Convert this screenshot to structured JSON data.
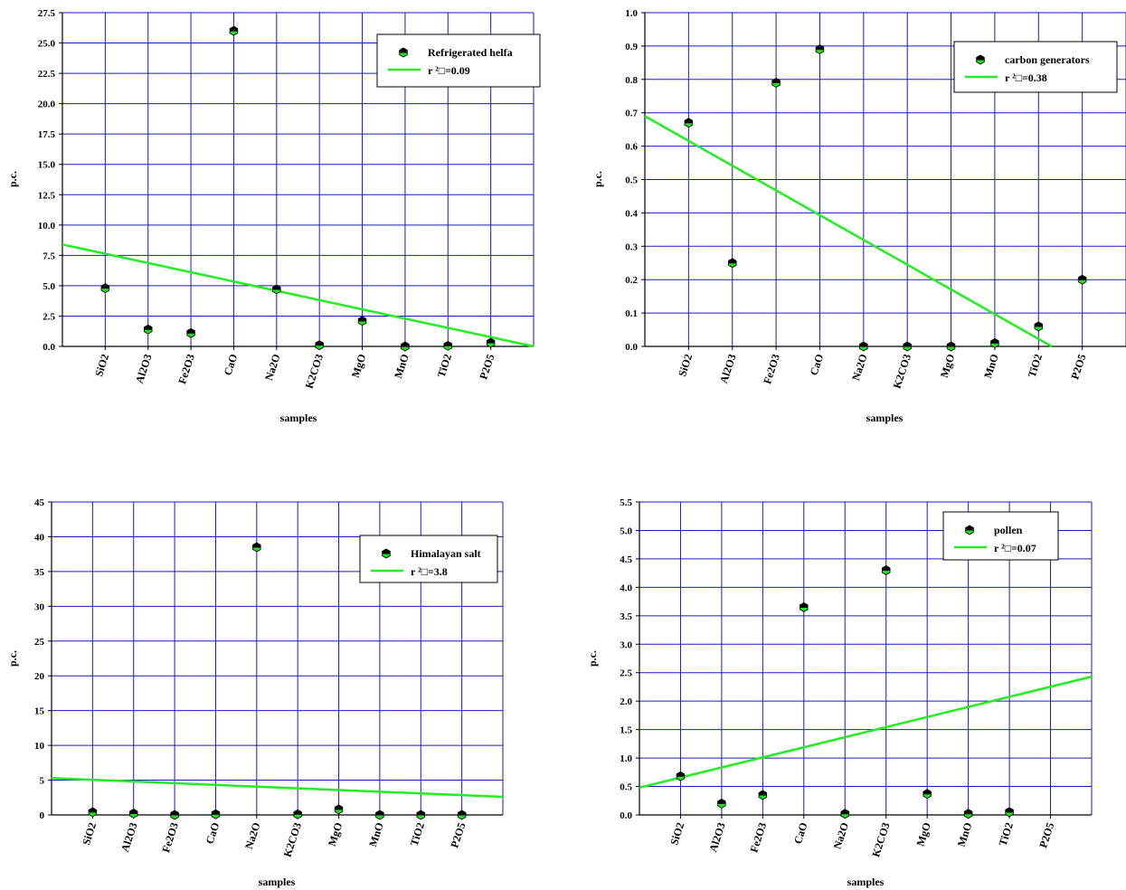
{
  "chart_data": [
    {
      "type": "scatter",
      "categories": [
        "SiO2",
        "Al2O3",
        "Fe2O3",
        "CaO",
        "Na2O",
        "K2CO3",
        "MgO",
        "MnO",
        "TiO2",
        "P2O5"
      ],
      "series": [
        {
          "name": "Refrigerated helfa",
          "values": [
            4.8,
            1.4,
            1.1,
            26.0,
            4.7,
            0.1,
            2.1,
            0.0,
            0.05,
            0.3
          ]
        }
      ],
      "fit_line": {
        "label": "r ²□=0.09",
        "start": [
          0.0,
          8.4
        ],
        "end": [
          11.0,
          0.0
        ]
      },
      "ylim": [
        0,
        27.5
      ],
      "yticks": [
        "0.0",
        "2.5",
        "5.0",
        "7.5",
        "10.0",
        "12.5",
        "15.0",
        "17.5",
        "20.0",
        "22.5",
        "25.0",
        "27.5"
      ],
      "xlabel": "samples",
      "ylabel": "p.c.",
      "legend_position": "top-right",
      "grid": true
    },
    {
      "type": "scatter",
      "categories": [
        "SiO2",
        "Al2O3",
        "Fe2O3",
        "CaO",
        "Na2O",
        "K2CO3",
        "MgO",
        "MnO",
        "TiO2",
        "P2O5"
      ],
      "series": [
        {
          "name": "carbon generators",
          "values": [
            0.67,
            0.25,
            0.79,
            0.89,
            0.0,
            0.0,
            0.0,
            0.01,
            0.06,
            0.2
          ]
        }
      ],
      "fit_line": {
        "label": "r ²□=0.38",
        "start": [
          0.0,
          0.69
        ],
        "end": [
          9.3,
          0.0
        ]
      },
      "ylim": [
        0,
        1.0
      ],
      "yticks": [
        "0.0",
        "0.1",
        "0.2",
        "0.3",
        "0.4",
        "0.5",
        "0.6",
        "0.7",
        "0.8",
        "0.9",
        "1.0"
      ],
      "xlabel": "samples",
      "ylabel": "p.c.",
      "legend_position": "top-right",
      "grid": true
    },
    {
      "type": "scatter",
      "categories": [
        "SiO2",
        "Al2O3",
        "Fe2O3",
        "CaO",
        "Na2O",
        "K2CO3",
        "MgO",
        "MnO",
        "TiO2",
        "P2O5"
      ],
      "series": [
        {
          "name": "Himalayan salt",
          "values": [
            0.4,
            0.2,
            0.0,
            0.1,
            38.5,
            0.1,
            0.8,
            0.0,
            0.0,
            0.0
          ]
        }
      ],
      "fit_line": {
        "label": "r ²□=3.8",
        "start": [
          0.0,
          5.3
        ],
        "end": [
          11.0,
          2.6
        ]
      },
      "ylim": [
        0,
        45
      ],
      "yticks": [
        "0",
        "5",
        "10",
        "15",
        "20",
        "25",
        "30",
        "35",
        "40",
        "45"
      ],
      "xlabel": "samples",
      "ylabel": "p.c.",
      "legend_position": "top-right",
      "grid": true
    },
    {
      "type": "scatter",
      "categories": [
        "SiO2",
        "Al2O3",
        "Fe2O3",
        "CaO",
        "Na2O",
        "K2CO3",
        "MgO",
        "MnO",
        "TiO2",
        "P2O5"
      ],
      "series": [
        {
          "name": "pollen",
          "values": [
            0.68,
            0.2,
            0.35,
            3.65,
            0.02,
            4.3,
            0.37,
            0.02,
            0.05,
            null
          ]
        }
      ],
      "fit_line": {
        "label": "r ²□=0.07",
        "start": [
          0.0,
          0.48
        ],
        "end": [
          11.0,
          2.43
        ]
      },
      "ylim": [
        0,
        5.5
      ],
      "yticks": [
        "0.0",
        "0.5",
        "1.0",
        "1.5",
        "2.0",
        "2.5",
        "3.0",
        "3.5",
        "4.0",
        "4.5",
        "5.0",
        "5.5"
      ],
      "xlabel": "samples",
      "ylabel": "p.c.",
      "legend_position": "top-right",
      "grid": true
    }
  ],
  "colors": {
    "grid": "#1a1ab8",
    "fit_line": "#22ee22",
    "marker_top": "#000000",
    "marker_bottom": "#22dd22",
    "axis": "#000000"
  }
}
